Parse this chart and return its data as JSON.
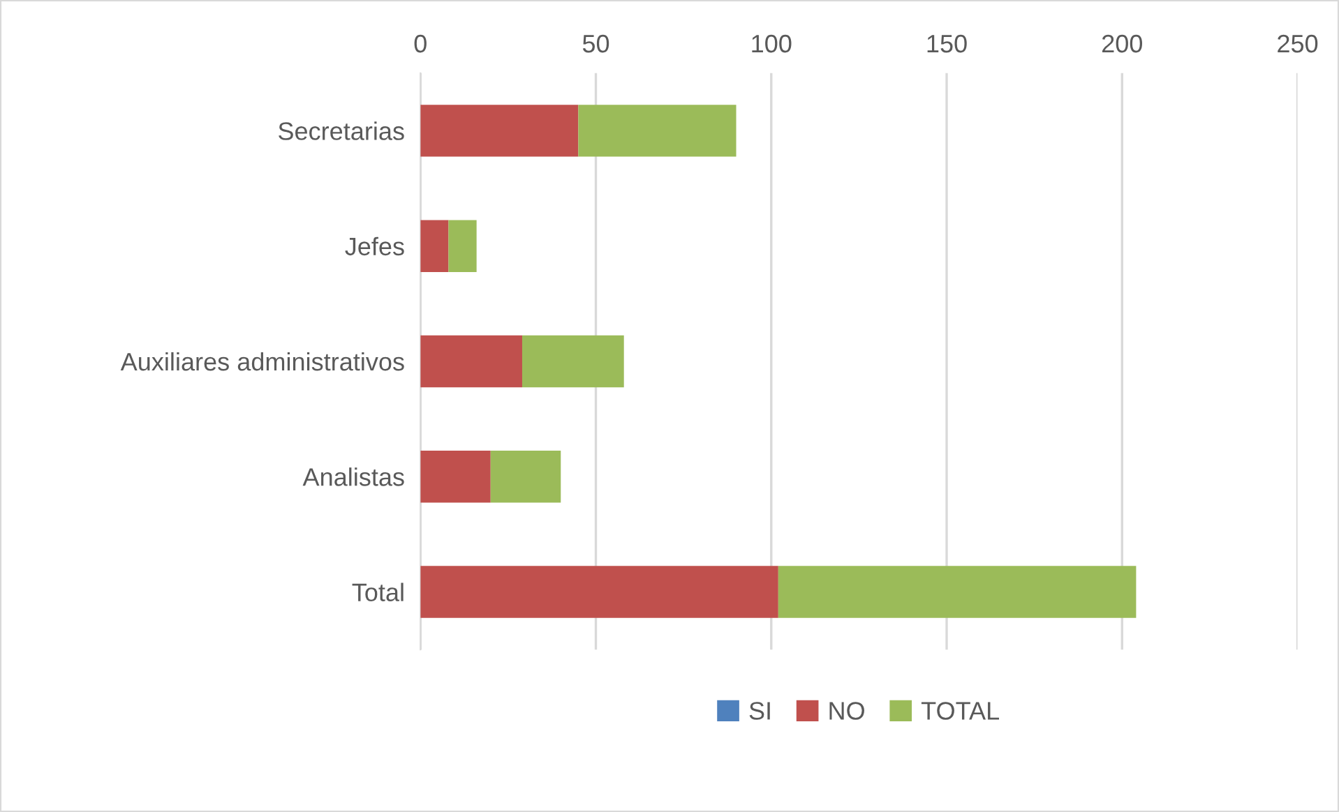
{
  "chart_data": {
    "type": "bar",
    "orientation": "horizontal",
    "stacked": true,
    "categories": [
      "Secretarias",
      "Jefes",
      "Auxiliares administrativos",
      "Analistas",
      "Total"
    ],
    "series": [
      {
        "name": "SI",
        "color": "#4f81bd",
        "values": [
          0,
          0,
          0,
          0,
          0
        ]
      },
      {
        "name": "NO",
        "color": "#c0504d",
        "values": [
          45,
          8,
          29,
          20,
          102
        ]
      },
      {
        "name": "TOTAL",
        "color": "#9bbb59",
        "values": [
          45,
          8,
          29,
          20,
          102
        ]
      }
    ],
    "xlim": [
      0,
      250
    ],
    "xticks": [
      0,
      50,
      100,
      150,
      200,
      250
    ],
    "grid": "x",
    "legend": "bottom"
  }
}
